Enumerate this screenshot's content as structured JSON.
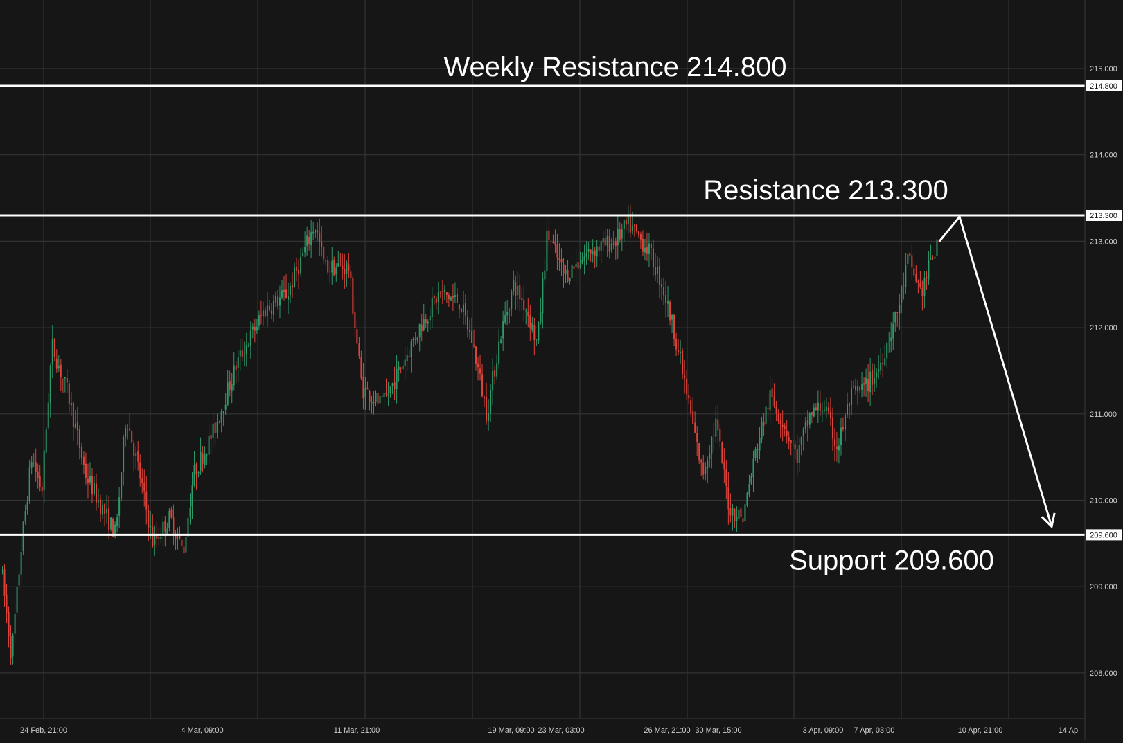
{
  "chart_data": {
    "type": "candlestick",
    "title": "",
    "y_axis": {
      "ticks": [
        "215.000",
        "214.000",
        "213.000",
        "212.000",
        "211.000",
        "210.000",
        "209.000",
        "208.000"
      ],
      "tick_values": [
        215,
        214,
        213,
        212,
        211,
        210,
        209,
        208
      ],
      "ylim": [
        207.5,
        215.8
      ],
      "position": "right"
    },
    "x_axis": {
      "ticks": [
        "24 Feb, 21:00",
        "4 Mar, 09:00",
        "11 Mar, 21:00",
        "19 Mar, 09:00",
        "23 Mar, 03:00",
        "26 Mar, 21:00",
        "30 Mar, 15:00",
        "3 Apr, 09:00",
        "7 Apr, 03:00",
        "10 Apr, 21:00",
        "14 Ap"
      ]
    },
    "grid": true,
    "levels": [
      {
        "name": "Weekly Resistance",
        "value": 214.8,
        "annotation": "Weekly Resistance 214.800",
        "axis_label": "214.800"
      },
      {
        "name": "Resistance",
        "value": 213.3,
        "annotation": "Resistance 213.300",
        "axis_label": "213.300"
      },
      {
        "name": "Support",
        "value": 209.6,
        "annotation": "Support 209.600",
        "axis_label": "209.600"
      }
    ],
    "price_path": [
      [
        0,
        209.2
      ],
      [
        0.3,
        208.2
      ],
      [
        0.6,
        209.5
      ],
      [
        0.9,
        210.5
      ],
      [
        1.2,
        210.1
      ],
      [
        1.5,
        211.8
      ],
      [
        2.0,
        211.2
      ],
      [
        2.5,
        210.3
      ],
      [
        3.0,
        209.9
      ],
      [
        3.4,
        209.6
      ],
      [
        3.7,
        211.0
      ],
      [
        4.1,
        210.3
      ],
      [
        4.5,
        209.5
      ],
      [
        5.0,
        209.8
      ],
      [
        5.4,
        209.4
      ],
      [
        5.7,
        210.3
      ],
      [
        6.3,
        210.8
      ],
      [
        7.0,
        211.6
      ],
      [
        7.8,
        212.2
      ],
      [
        8.5,
        212.4
      ],
      [
        9.0,
        212.9
      ],
      [
        9.3,
        213.2
      ],
      [
        9.6,
        212.7
      ],
      [
        10.3,
        212.7
      ],
      [
        10.7,
        211.3
      ],
      [
        11.3,
        211.1
      ],
      [
        11.8,
        211.5
      ],
      [
        12.4,
        212.0
      ],
      [
        13.0,
        212.4
      ],
      [
        13.6,
        212.3
      ],
      [
        14.0,
        211.8
      ],
      [
        14.4,
        211.0
      ],
      [
        14.8,
        211.9
      ],
      [
        15.2,
        212.5
      ],
      [
        15.6,
        212.2
      ],
      [
        15.9,
        211.8
      ],
      [
        16.2,
        213.1
      ],
      [
        16.7,
        212.6
      ],
      [
        17.5,
        212.9
      ],
      [
        18.2,
        213.0
      ],
      [
        18.6,
        213.2
      ],
      [
        19.2,
        212.9
      ],
      [
        19.6,
        212.5
      ],
      [
        20.0,
        211.9
      ],
      [
        20.4,
        211.1
      ],
      [
        20.8,
        210.3
      ],
      [
        21.2,
        210.9
      ],
      [
        21.6,
        209.9
      ],
      [
        22.0,
        209.8
      ],
      [
        22.4,
        210.6
      ],
      [
        22.8,
        211.2
      ],
      [
        23.2,
        210.9
      ],
      [
        23.6,
        210.5
      ],
      [
        24.0,
        211.0
      ],
      [
        24.4,
        211.1
      ],
      [
        24.8,
        210.6
      ],
      [
        25.2,
        211.2
      ],
      [
        25.6,
        211.3
      ],
      [
        26.0,
        211.5
      ],
      [
        26.6,
        212.2
      ],
      [
        26.9,
        212.8
      ],
      [
        27.1,
        212.6
      ],
      [
        27.3,
        212.4
      ],
      [
        27.6,
        212.8
      ],
      [
        27.85,
        213.0
      ]
    ],
    "projection": {
      "from": 213.0,
      "peak": 213.3,
      "target": 209.6,
      "direction": "down"
    }
  }
}
